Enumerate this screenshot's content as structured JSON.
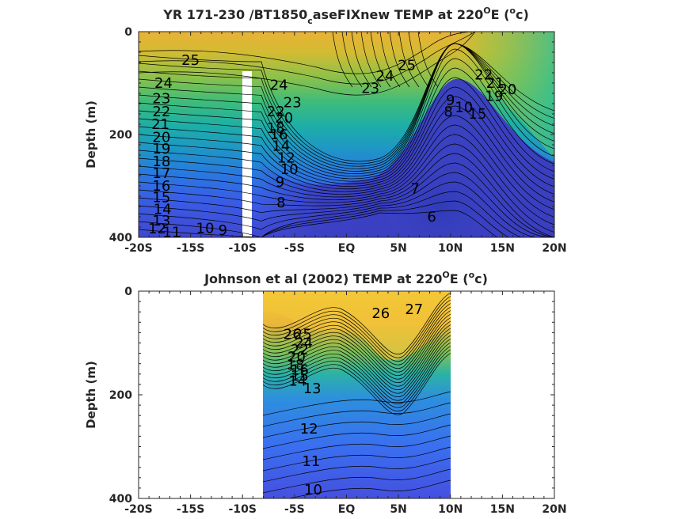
{
  "chart_data": [
    {
      "type": "heatmap",
      "title_main": "YR 171-230 /BT1850",
      "title_sub": "c",
      "title_tail": "aseFIXnew TEMP at 220",
      "title_deg": "O",
      "title_unit_open": "E (",
      "title_unit_sup": "o",
      "title_unit_close": "c)",
      "xlabel": "",
      "ylabel": "Depth (m)",
      "x_ticks": [
        "-20S",
        "-15S",
        "-10S",
        "-5S",
        "EQ",
        "5N",
        "10N",
        "15N",
        "20N"
      ],
      "y_ticks": [
        "0",
        "200",
        "400"
      ],
      "xlim": [
        -20,
        20
      ],
      "ylim": [
        0,
        400
      ],
      "y_reversed": true,
      "missing_strip": {
        "x": [
          -10.5,
          -9.8
        ],
        "depth_from": 78
      },
      "contour_labels": [
        {
          "text": "25",
          "x": -15.0,
          "y": 55
        },
        {
          "text": "24",
          "x": -17.6,
          "y": 100
        },
        {
          "text": "23",
          "x": -17.8,
          "y": 130
        },
        {
          "text": "22",
          "x": -17.8,
          "y": 155
        },
        {
          "text": "21",
          "x": -17.9,
          "y": 180
        },
        {
          "text": "20",
          "x": -17.8,
          "y": 205
        },
        {
          "text": "19",
          "x": -17.8,
          "y": 228
        },
        {
          "text": "18",
          "x": -17.8,
          "y": 252
        },
        {
          "text": "17",
          "x": -17.8,
          "y": 275
        },
        {
          "text": "16",
          "x": -17.8,
          "y": 300
        },
        {
          "text": "15",
          "x": -17.8,
          "y": 322
        },
        {
          "text": "14",
          "x": -17.7,
          "y": 345
        },
        {
          "text": "13",
          "x": -17.8,
          "y": 368
        },
        {
          "text": "12",
          "x": -18.2,
          "y": 383
        },
        {
          "text": "11",
          "x": -16.8,
          "y": 390
        },
        {
          "text": "10",
          "x": -13.6,
          "y": 382
        },
        {
          "text": "9",
          "x": -11.9,
          "y": 386
        },
        {
          "text": "24",
          "x": -6.5,
          "y": 104
        },
        {
          "text": "23",
          "x": -5.2,
          "y": 138
        },
        {
          "text": "22",
          "x": -6.8,
          "y": 155
        },
        {
          "text": "20",
          "x": -6.0,
          "y": 168
        },
        {
          "text": "18",
          "x": -6.8,
          "y": 188
        },
        {
          "text": "16",
          "x": -6.5,
          "y": 200
        },
        {
          "text": "14",
          "x": -6.3,
          "y": 222
        },
        {
          "text": "12",
          "x": -5.8,
          "y": 245
        },
        {
          "text": "10",
          "x": -5.5,
          "y": 268
        },
        {
          "text": "9",
          "x": -6.4,
          "y": 292
        },
        {
          "text": "8",
          "x": -6.3,
          "y": 332
        },
        {
          "text": "23",
          "x": 2.3,
          "y": 110
        },
        {
          "text": "24",
          "x": 3.7,
          "y": 86
        },
        {
          "text": "25",
          "x": 5.8,
          "y": 65
        },
        {
          "text": "22",
          "x": 13.2,
          "y": 84
        },
        {
          "text": "21",
          "x": 14.3,
          "y": 100
        },
        {
          "text": "20",
          "x": 15.5,
          "y": 112
        },
        {
          "text": "19",
          "x": 14.2,
          "y": 125
        },
        {
          "text": "9",
          "x": 10.0,
          "y": 133
        },
        {
          "text": "8",
          "x": 9.8,
          "y": 155
        },
        {
          "text": "10",
          "x": 11.3,
          "y": 147
        },
        {
          "text": "15",
          "x": 12.6,
          "y": 160
        },
        {
          "text": "7",
          "x": 6.6,
          "y": 305
        },
        {
          "text": "6",
          "x": 8.2,
          "y": 360
        }
      ]
    },
    {
      "type": "heatmap",
      "title_main": "Johnson et al (2002) TEMP at 220",
      "title_deg": "O",
      "title_unit_open": "E (",
      "title_unit_sup": "o",
      "title_unit_close": "c)",
      "xlabel": "",
      "ylabel": "Depth (m)",
      "x_ticks": [
        "-20S",
        "-15S",
        "-10S",
        "-5S",
        "EQ",
        "5N",
        "10N",
        "15N",
        "20N"
      ],
      "y_ticks": [
        "0",
        "200",
        "400"
      ],
      "xlim": [
        -20,
        20
      ],
      "ylim": [
        0,
        400
      ],
      "y_reversed": true,
      "data_extent_x": [
        -8,
        10
      ],
      "contour_labels": [
        {
          "text": "27",
          "x": 6.5,
          "y": 35
        },
        {
          "text": "26",
          "x": 3.3,
          "y": 43
        },
        {
          "text": "26",
          "x": -5.2,
          "y": 83
        },
        {
          "text": "25",
          "x": -4.2,
          "y": 83
        },
        {
          "text": "24",
          "x": -4.1,
          "y": 100
        },
        {
          "text": "22",
          "x": -4.5,
          "y": 113
        },
        {
          "text": "20",
          "x": -4.8,
          "y": 127
        },
        {
          "text": "18",
          "x": -4.9,
          "y": 142
        },
        {
          "text": "16",
          "x": -4.5,
          "y": 152
        },
        {
          "text": "15",
          "x": -4.5,
          "y": 163
        },
        {
          "text": "14",
          "x": -4.7,
          "y": 173
        },
        {
          "text": "13",
          "x": -3.3,
          "y": 188
        },
        {
          "text": "12",
          "x": -3.6,
          "y": 266
        },
        {
          "text": "11",
          "x": -3.4,
          "y": 328
        },
        {
          "text": "10",
          "x": -3.2,
          "y": 383
        }
      ]
    }
  ]
}
